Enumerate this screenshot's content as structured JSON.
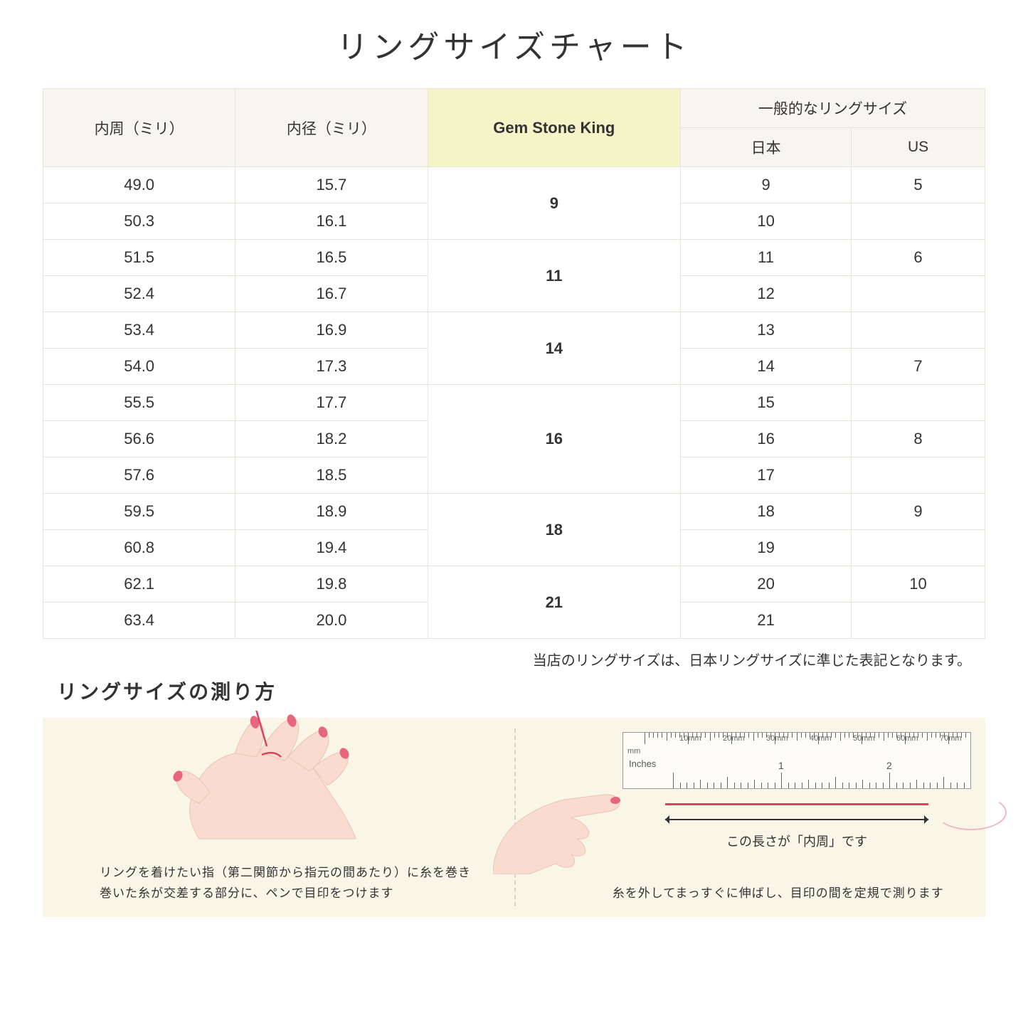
{
  "title": "リングサイズチャート",
  "headers": {
    "circumference": "内周（ミリ）",
    "diameter": "内径（ミリ）",
    "gsk": "Gem Stone King",
    "general": "一般的なリングサイズ",
    "japan": "日本",
    "us": "US"
  },
  "rows": [
    {
      "circ": "49.0",
      "diam": "15.7",
      "jp": "9",
      "us": "5"
    },
    {
      "circ": "50.3",
      "diam": "16.1",
      "jp": "10",
      "us": ""
    },
    {
      "circ": "51.5",
      "diam": "16.5",
      "jp": "11",
      "us": "6"
    },
    {
      "circ": "52.4",
      "diam": "16.7",
      "jp": "12",
      "us": ""
    },
    {
      "circ": "53.4",
      "diam": "16.9",
      "jp": "13",
      "us": ""
    },
    {
      "circ": "54.0",
      "diam": "17.3",
      "jp": "14",
      "us": "7"
    },
    {
      "circ": "55.5",
      "diam": "17.7",
      "jp": "15",
      "us": ""
    },
    {
      "circ": "56.6",
      "diam": "18.2",
      "jp": "16",
      "us": "8"
    },
    {
      "circ": "57.6",
      "diam": "18.5",
      "jp": "17",
      "us": ""
    },
    {
      "circ": "59.5",
      "diam": "18.9",
      "jp": "18",
      "us": "9"
    },
    {
      "circ": "60.8",
      "diam": "19.4",
      "jp": "19",
      "us": ""
    },
    {
      "circ": "62.1",
      "diam": "19.8",
      "jp": "20",
      "us": "10"
    },
    {
      "circ": "63.4",
      "diam": "20.0",
      "jp": "21",
      "us": ""
    }
  ],
  "gsk_groups": [
    {
      "label": "9",
      "span": 2
    },
    {
      "label": "11",
      "span": 2
    },
    {
      "label": "14",
      "span": 2
    },
    {
      "label": "16",
      "span": 3
    },
    {
      "label": "18",
      "span": 2
    },
    {
      "label": "21",
      "span": 2
    }
  ],
  "note": "当店のリングサイズは、日本リングサイズに準じた表記となります。",
  "subtitle": "リングサイズの測り方",
  "instruction_left": "リングを着けたい指（第二関節から指元の間あたり）に糸を巻き\n巻いた糸が交差する部分に、ペンで目印をつけます",
  "instruction_right": "糸を外してまっすぐに伸ばし、目印の間を定規で測ります",
  "ruler": {
    "mm_unit": "mm",
    "inches_label": "Inches",
    "mm_marks": [
      "10mm",
      "20mm",
      "30mm",
      "40mm",
      "50mm",
      "60mm",
      "70mm"
    ],
    "inch_marks": [
      "1",
      "2"
    ]
  },
  "arrow_label": "この長さが「内周」です",
  "colors": {
    "header_bg": "#f7f5ed",
    "highlight_bg": "#f5f3c8",
    "border": "#e8e5dd",
    "instruction_bg": "#f9f6e8",
    "hand_skin": "#f9dccf",
    "nail": "#e8657f",
    "thread": "#d6455e"
  }
}
